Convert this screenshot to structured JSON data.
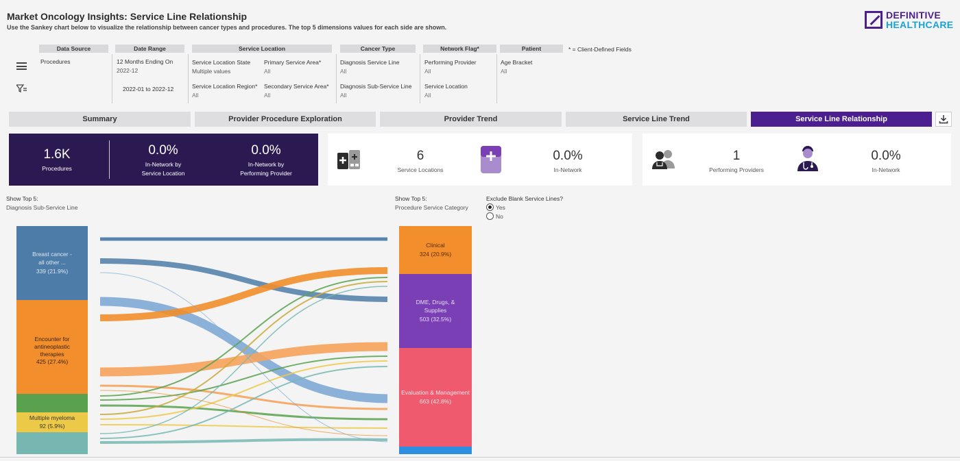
{
  "header": {
    "title": "Market Oncology Insights: Service Line Relationship",
    "subtitle": "Use the Sankey chart below to visualize the relationship between cancer types and procedures. The top 5 dimensions values for each side are shown.",
    "logo_line1": "DEFINITIVE",
    "logo_line2": "HEALTHCARE"
  },
  "filters": {
    "data_source": {
      "head": "Data Source",
      "value": "Procedures"
    },
    "date_range": {
      "head": "Date Range",
      "label": "12 Months Ending On",
      "value": "2022-12",
      "range": "2022-01 to 2022-12"
    },
    "service_location": {
      "head": "Service Location",
      "state_label": "Service Location State",
      "state_value": "Multiple values",
      "psa_label": "Primary Service Area*",
      "psa_value": "All",
      "region_label": "Service Location Region*",
      "region_value": "All",
      "ssa_label": "Secondary Service Area*",
      "ssa_value": "All"
    },
    "cancer_type": {
      "head": "Cancer Type",
      "line_label": "Diagnosis Service Line",
      "line_value": "All",
      "sub_label": "Diagnosis Sub-Service Line",
      "sub_value": "All"
    },
    "network_flag": {
      "head": "Network Flag*",
      "pp_label": "Performing Provider",
      "pp_value": "All",
      "sl_label": "Service Location",
      "sl_value": "All"
    },
    "patient": {
      "head": "Patient",
      "label": "Age Bracket",
      "value": "All"
    },
    "client_note": "* = Client-Defined Fields"
  },
  "tabs": [
    "Summary",
    "Provider Procedure Exploration",
    "Provider Trend",
    "Service Line Trend",
    "Service Line Relationship"
  ],
  "active_tab": 4,
  "kpis": {
    "procedures": {
      "value": "1.6K",
      "label": "Procedures"
    },
    "in_net_sl": {
      "value": "0.0%",
      "label1": "In-Network by",
      "label2": "Service Location"
    },
    "in_net_pp": {
      "value": "0.0%",
      "label1": "In-Network by",
      "label2": "Performing Provider"
    },
    "service_locations": {
      "value": "6",
      "label": "Service Locations"
    },
    "sl_in_network": {
      "value": "0.0%",
      "label": "In-Network"
    },
    "performing_providers": {
      "value": "1",
      "label": "Performing Providers"
    },
    "pp_in_network": {
      "value": "0.0%",
      "label": "In-Network"
    }
  },
  "controls": {
    "left_show": "Show Top 5:",
    "left_dim": "Diagnosis Sub-Service Line",
    "right_show": "Show Top 5:",
    "right_dim": "Procedure Service Category",
    "exclude_label": "Exclude Blank Service Lines?",
    "yes": "Yes",
    "no": "No"
  },
  "icons": {
    "menu": "hamburger-menu-icon",
    "filter": "filter-icon",
    "download": "download-icon",
    "location": "medical-facility-icon",
    "clipboard": "medical-clipboard-icon",
    "providers": "doctor-group-icon",
    "provider": "doctor-icon"
  },
  "colors": {
    "accent": "#4b1f8f",
    "dark_kpi": "#2b1a52"
  },
  "chart_data": {
    "type": "sankey",
    "left_nodes": [
      {
        "label": "Breast cancer - all other ...",
        "value": "339 (21.9%)",
        "color": "#4e7ca8"
      },
      {
        "label": "Encounter for antineoplastic therapies",
        "value": "425 (27.4%)",
        "color": "#f28e2b"
      },
      {
        "label": "",
        "value": "",
        "color": "#59a14f"
      },
      {
        "label": "Multiple myeloma",
        "value": "92 (5.9%)",
        "color": "#edc948"
      },
      {
        "label": "",
        "value": "",
        "color": "#76b7b2"
      }
    ],
    "right_nodes": [
      {
        "label": "Clinical",
        "value": "324 (20.9%)",
        "color": "#f28e2b"
      },
      {
        "label": "DME, Drugs, & Supplies",
        "value": "503 (32.5%)",
        "color": "#7b3fb5"
      },
      {
        "label": "Evaluation & Management",
        "value": "663 (42.8%)",
        "color": "#ef5a6f"
      },
      {
        "label": "",
        "value": "",
        "color": "#2e8fe0"
      }
    ]
  }
}
